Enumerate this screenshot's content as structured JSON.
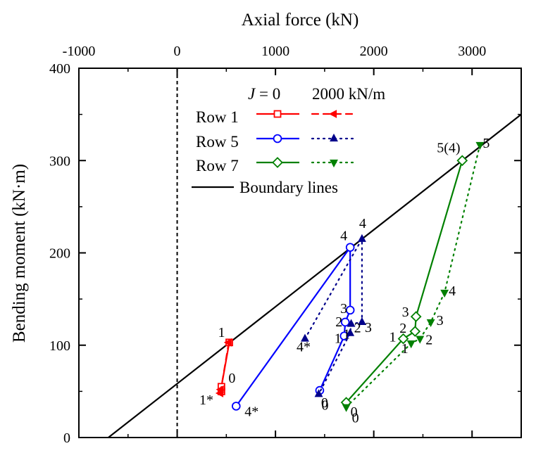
{
  "chart_data": {
    "type": "scatter",
    "xlabel": "Axial force (kN)",
    "ylabel": "Bending moment (kN·m)",
    "xlim": [
      -1000,
      3500
    ],
    "ylim": [
      0,
      400
    ],
    "x_axis_position": "top",
    "x_ticks": [
      -1000,
      0,
      1000,
      2000,
      3000
    ],
    "y_ticks": [
      0,
      100,
      200,
      300,
      400
    ],
    "grid": false,
    "legend_placement": "top-center",
    "legend_headers": [
      "J = 0",
      "2000 kN/m"
    ],
    "zero_line": {
      "x": 0,
      "style": "dashed"
    },
    "boundary_lines": {
      "name": "Boundary lines",
      "color": "#000000",
      "points": [
        [
          -700,
          0
        ],
        [
          3500,
          350
        ]
      ]
    },
    "series": [
      {
        "name": "Row 1",
        "stiffness": "J = 0",
        "color": "#ff0000",
        "line": "solid",
        "marker": "square-open",
        "points": [
          [
            450,
            50,
            ""
          ],
          [
            450,
            55,
            "0"
          ],
          [
            530,
            103,
            "1"
          ]
        ]
      },
      {
        "name": "Row 1",
        "stiffness": "2000 kN/m",
        "color": "#ff0000",
        "line": "dashed",
        "marker": "triangle-left-filled",
        "points": [
          [
            440,
            48,
            "1*"
          ],
          [
            445,
            52,
            ""
          ],
          [
            525,
            103,
            ""
          ]
        ]
      },
      {
        "name": "Row 5",
        "stiffness": "J = 0",
        "color": "#0000ff",
        "line": "solid",
        "marker": "circle-open",
        "points": [
          [
            600,
            34,
            "4*"
          ],
          [
            1760,
            206,
            "4"
          ],
          [
            1760,
            138,
            "3"
          ],
          [
            1710,
            125,
            "2"
          ],
          [
            1700,
            110,
            "1"
          ],
          [
            1450,
            51,
            "0"
          ]
        ]
      },
      {
        "name": "Row 5",
        "stiffness": "2000 kN/m",
        "color": "#00008b",
        "line": "dotted",
        "marker": "triangle-up-filled",
        "points": [
          [
            1300,
            107,
            "4*"
          ],
          [
            1880,
            215,
            "4"
          ],
          [
            1880,
            125,
            "3"
          ],
          [
            1770,
            123,
            "2"
          ],
          [
            1760,
            113,
            "1"
          ],
          [
            1440,
            47,
            "0"
          ]
        ]
      },
      {
        "name": "Row 7",
        "stiffness": "J = 0",
        "color": "#008000",
        "line": "solid",
        "marker": "diamond-open",
        "points": [
          [
            2900,
            300,
            "5(4)"
          ],
          [
            2430,
            131,
            "3"
          ],
          [
            2420,
            115,
            "2"
          ],
          [
            2300,
            107,
            "1"
          ],
          [
            1720,
            38,
            "0"
          ]
        ]
      },
      {
        "name": "Row 7",
        "stiffness": "2000 kN/m",
        "color": "#008000",
        "line": "dotted",
        "marker": "triangle-down-filled",
        "points": [
          [
            3080,
            317,
            "5"
          ],
          [
            2720,
            157,
            "4"
          ],
          [
            2580,
            125,
            "3"
          ],
          [
            2470,
            107,
            "2"
          ],
          [
            2380,
            102,
            "1"
          ],
          [
            1720,
            33,
            "0"
          ]
        ]
      }
    ]
  }
}
